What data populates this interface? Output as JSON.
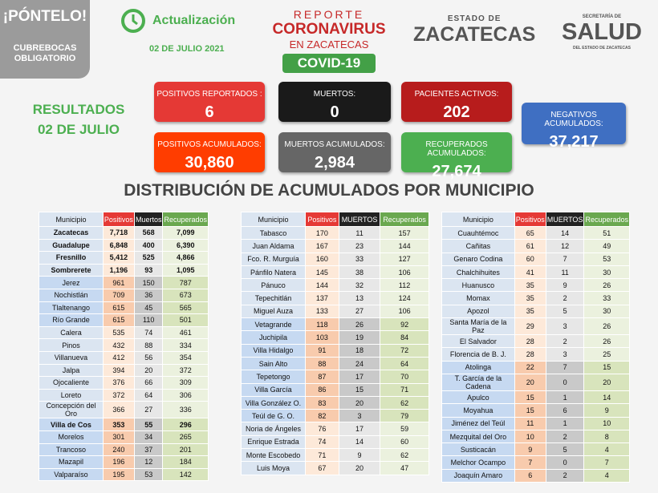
{
  "badge": {
    "title": "¡PÓNTELO!",
    "line1": "CUBREBOCAS",
    "line2": "OBLIGATORIO"
  },
  "header": {
    "update": "Actualización",
    "date": "02 DE JULIO 2021",
    "report": "REPORTE",
    "coronavirus": "CORONAVIRUS",
    "region": "EN ZACATECAS",
    "covid": "COVID-19",
    "state_top": "ESTADO DE",
    "state": "ZACATECAS",
    "health_top": "SECRETARÍA DE",
    "health": "SALUD",
    "health_bottom": "DEL ESTADO DE ZACATECAS"
  },
  "results": {
    "line1": "RESULTADOS",
    "line2": "02 DE JULIO"
  },
  "summary": [
    {
      "label": "POSITIVOS REPORTADOS :",
      "value": "6"
    },
    {
      "label": "MUERTOS:",
      "value": "0"
    },
    {
      "label": "PACIENTES ACTIVOS:",
      "value": "202"
    },
    {
      "label": "NEGATIVOS ACUMULADOS:",
      "value": "37,217"
    },
    {
      "label": "POSITIVOS ACUMULADOS:",
      "value": "30,860"
    },
    {
      "label": "MUERTOS ACUMULADOS:",
      "value": "2,984"
    },
    {
      "label": "RECUPERADOS ACUMULADOS:",
      "value": "27,674"
    }
  ],
  "title": "DISTRIBUCIÓN DE ACUMULADOS POR MUNICIPIO",
  "tables": [
    {
      "columns": [
        "Municipio",
        "Positivos",
        "Muertos",
        "Recuperados"
      ],
      "rows": [
        [
          "Zacatecas",
          "7,718",
          "568",
          "7,099"
        ],
        [
          "Guadalupe",
          "6,848",
          "400",
          "6,390"
        ],
        [
          "Fresnillo",
          "5,412",
          "525",
          "4,866"
        ],
        [
          "Sombrerete",
          "1,196",
          "93",
          "1,095"
        ],
        [
          "Jerez",
          "961",
          "150",
          "787"
        ],
        [
          "Nochistlán",
          "709",
          "36",
          "673"
        ],
        [
          "Tlaltenango",
          "615",
          "45",
          "565"
        ],
        [
          "Río Grande",
          "615",
          "110",
          "501"
        ],
        [
          "Calera",
          "535",
          "74",
          "461"
        ],
        [
          "Pinos",
          "432",
          "88",
          "334"
        ],
        [
          "Villanueva",
          "412",
          "56",
          "354"
        ],
        [
          "Jalpa",
          "394",
          "20",
          "372"
        ],
        [
          "Ojocaliente",
          "376",
          "66",
          "309"
        ],
        [
          "Loreto",
          "372",
          "64",
          "306"
        ],
        [
          "Concepción del Oro",
          "366",
          "27",
          "336"
        ],
        [
          "Villa de Cos",
          "353",
          "55",
          "296"
        ],
        [
          "Morelos",
          "301",
          "34",
          "265"
        ],
        [
          "Trancoso",
          "240",
          "37",
          "201"
        ],
        [
          "Mazapil",
          "196",
          "12",
          "184"
        ],
        [
          "Valparaíso",
          "195",
          "53",
          "142"
        ]
      ]
    },
    {
      "columns": [
        "Municipio",
        "Positivos",
        "MUERTOS",
        "Recuperados"
      ],
      "rows": [
        [
          "Tabasco",
          "170",
          "11",
          "157"
        ],
        [
          "Juan Aldama",
          "167",
          "23",
          "144"
        ],
        [
          "Fco. R. Murguía",
          "160",
          "33",
          "127"
        ],
        [
          "Pánfilo Natera",
          "145",
          "38",
          "106"
        ],
        [
          "Pánuco",
          "144",
          "32",
          "112"
        ],
        [
          "Tepechitlán",
          "137",
          "13",
          "124"
        ],
        [
          "Miguel Auza",
          "133",
          "27",
          "106"
        ],
        [
          "Vetagrande",
          "118",
          "26",
          "92"
        ],
        [
          "Juchipila",
          "103",
          "19",
          "84"
        ],
        [
          "Villa Hidalgo",
          "91",
          "18",
          "72"
        ],
        [
          "Sain Alto",
          "88",
          "24",
          "64"
        ],
        [
          "Tepetongo",
          "87",
          "17",
          "70"
        ],
        [
          "Villa García",
          "86",
          "15",
          "71"
        ],
        [
          "Villa González O.",
          "83",
          "20",
          "62"
        ],
        [
          "Teúl de G. O.",
          "82",
          "3",
          "79"
        ],
        [
          "Noria de Ángeles",
          "76",
          "17",
          "59"
        ],
        [
          "Enrique Estrada",
          "74",
          "14",
          "60"
        ],
        [
          "Monte Escobedo",
          "71",
          "9",
          "62"
        ],
        [
          "Luis Moya",
          "67",
          "20",
          "47"
        ]
      ]
    },
    {
      "columns": [
        "Municipio",
        "Positivos",
        "MUERTOS",
        "Recuperados"
      ],
      "rows": [
        [
          "Cuauhtémoc",
          "65",
          "14",
          "51"
        ],
        [
          "Cañitas",
          "61",
          "12",
          "49"
        ],
        [
          "Genaro Codina",
          "60",
          "7",
          "53"
        ],
        [
          "Chalchihuites",
          "41",
          "11",
          "30"
        ],
        [
          "Huanusco",
          "35",
          "9",
          "26"
        ],
        [
          "Momax",
          "35",
          "2",
          "33"
        ],
        [
          "Apozol",
          "35",
          "5",
          "30"
        ],
        [
          "Santa María de la Paz",
          "29",
          "3",
          "26"
        ],
        [
          "El Salvador",
          "28",
          "2",
          "26"
        ],
        [
          "Florencia de B. J.",
          "28",
          "3",
          "25"
        ],
        [
          "Atolinga",
          "22",
          "7",
          "15"
        ],
        [
          "T. García de la Cadena",
          "20",
          "0",
          "20"
        ],
        [
          "Apulco",
          "15",
          "1",
          "14"
        ],
        [
          "Moyahua",
          "15",
          "6",
          "9"
        ],
        [
          "Jiménez del Teúl",
          "11",
          "1",
          "10"
        ],
        [
          "Mezquital del Oro",
          "10",
          "2",
          "8"
        ],
        [
          "Susticacán",
          "9",
          "5",
          "4"
        ],
        [
          "Melchor Ocampo",
          "7",
          "0",
          "7"
        ],
        [
          "Joaquín Amaro",
          "6",
          "2",
          "4"
        ]
      ]
    }
  ]
}
